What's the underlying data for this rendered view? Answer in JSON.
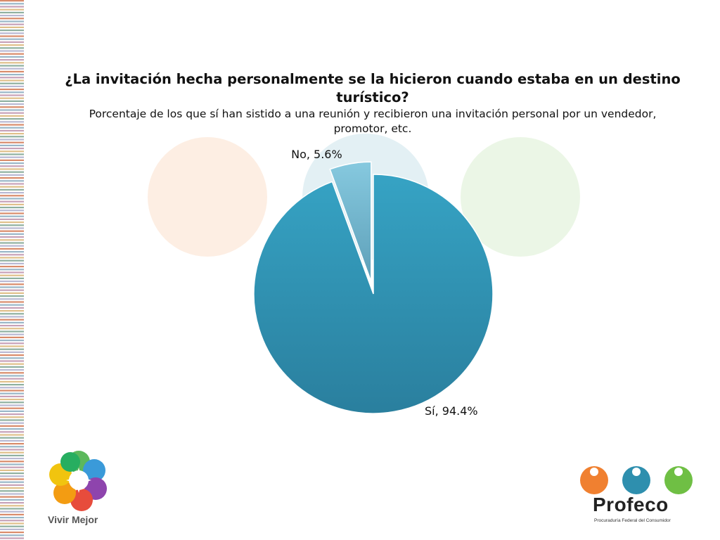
{
  "chart_data": {
    "type": "pie",
    "title": "¿La invitación hecha personalmente se la hicieron cuando estaba en un destino turístico?",
    "subtitle": "Porcentaje de los que sí han sistido a una reunión y recibieron una invitación personal por un vendedor, promotor, etc.",
    "slices": [
      {
        "label": "Sí, 94.4%",
        "value": 94.4,
        "color": "#2e8fae"
      },
      {
        "label": "No, 5.6%",
        "value": 5.6,
        "color": "#72b8d1",
        "exploded": true
      }
    ]
  },
  "logos": {
    "left_text": "Vivir Mejor",
    "right_name": "Profeco",
    "right_subtitle": "Procuraduría Federal del Consumidor"
  }
}
